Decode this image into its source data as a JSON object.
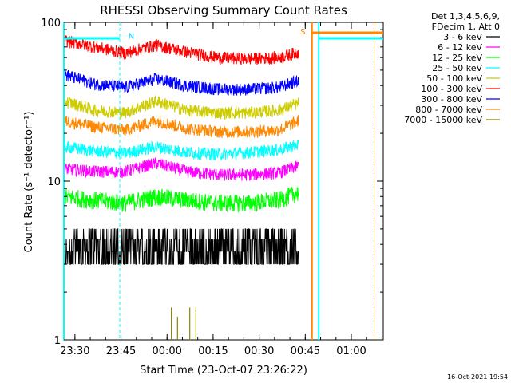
{
  "chart_data": {
    "type": "line",
    "title": "RHESSI Observing Summary Count Rates",
    "xlabel": "Start Time (23-Oct-07 23:26:22)",
    "ylabel": "Count Rate (s⁻¹ detector⁻¹)",
    "yscale": "log",
    "ylim": [
      1,
      100
    ],
    "xlim_minutes": [
      0,
      104
    ],
    "x_units": "minutes after 23:26:22",
    "y_ticks": [
      {
        "value": 1,
        "label": "1"
      },
      {
        "value": 10,
        "label": "10"
      },
      {
        "value": 100,
        "label": "100"
      }
    ],
    "x_ticks": [
      {
        "value": 3.6,
        "label": "23:30"
      },
      {
        "value": 18.6,
        "label": "23:45"
      },
      {
        "value": 33.6,
        "label": "00:00"
      },
      {
        "value": 48.6,
        "label": "00:15"
      },
      {
        "value": 63.6,
        "label": "00:30"
      },
      {
        "value": 78.6,
        "label": "00:45"
      },
      {
        "value": 93.6,
        "label": "01:00"
      }
    ],
    "legend_header": [
      "Det 1,3,4,5,6,9,",
      "FDecim 1, Att 0"
    ],
    "legend_position": "right",
    "series": [
      {
        "name": "3 - 6 keV",
        "color": "#000000",
        "x": [
          0,
          10,
          20,
          30,
          40,
          50,
          60,
          70,
          76.5
        ],
        "y": [
          4.2,
          3.9,
          3.6,
          3.8,
          3.6,
          3.5,
          3.6,
          3.8,
          4.0
        ]
      },
      {
        "name": "6 - 12 keV",
        "color": "#ff00ff",
        "x": [
          0,
          10,
          20,
          30,
          40,
          50,
          60,
          70,
          76.5
        ],
        "y": [
          12.0,
          11.5,
          11.5,
          13.0,
          11.5,
          11.0,
          11.0,
          11.3,
          12.5
        ]
      },
      {
        "name": "12 - 25 keV",
        "color": "#00ff00",
        "x": [
          0,
          10,
          20,
          30,
          40,
          50,
          60,
          70,
          76.5
        ],
        "y": [
          8.0,
          7.6,
          7.3,
          8.0,
          7.6,
          7.3,
          7.3,
          7.6,
          8.5
        ]
      },
      {
        "name": "25 - 50 keV",
        "color": "#00ffff",
        "x": [
          0,
          10,
          20,
          30,
          40,
          50,
          60,
          70,
          76.5
        ],
        "y": [
          16.5,
          15.5,
          15.0,
          16.5,
          15.2,
          14.8,
          15.2,
          15.8,
          17.0
        ]
      },
      {
        "name": "50 - 100 keV",
        "color": "#cccc00",
        "x": [
          0,
          10,
          20,
          30,
          40,
          50,
          60,
          70,
          76.5
        ],
        "y": [
          32.0,
          28.0,
          27.0,
          32.0,
          28.0,
          27.0,
          27.0,
          28.0,
          31.0
        ]
      },
      {
        "name": "100 - 300 keV",
        "color": "#ff0000",
        "x": [
          0,
          10,
          20,
          30,
          40,
          50,
          60,
          70,
          76.5
        ],
        "y": [
          77.0,
          70.0,
          64.0,
          72.0,
          65.0,
          60.0,
          59.0,
          60.0,
          65.0
        ]
      },
      {
        "name": "300 - 800 keV",
        "color": "#0000ff",
        "x": [
          0,
          10,
          20,
          30,
          40,
          50,
          60,
          70,
          76.5
        ],
        "y": [
          47.0,
          41.0,
          39.0,
          44.0,
          40.0,
          38.0,
          38.0,
          39.0,
          43.0
        ]
      },
      {
        "name": "800 - 7000 keV",
        "color": "#ff8800",
        "x": [
          0,
          10,
          20,
          30,
          40,
          50,
          60,
          70,
          76.5
        ],
        "y": [
          24.0,
          22.0,
          21.0,
          24.0,
          21.5,
          20.5,
          20.5,
          21.0,
          24.0
        ]
      },
      {
        "name": "7000 - 15000 keV",
        "color": "#888800",
        "x": [
          35,
          37,
          41,
          43
        ],
        "y": [
          1.6,
          1.4,
          1.6,
          1.6
        ]
      }
    ],
    "annotations": [
      {
        "text": "N",
        "color": "#00ccff",
        "x": 21.0,
        "y": 79
      },
      {
        "text": "S",
        "color": "#ff8800",
        "x": 77.0,
        "y": 84
      }
    ],
    "timestamp": "16-Oct-2021 19:54"
  }
}
